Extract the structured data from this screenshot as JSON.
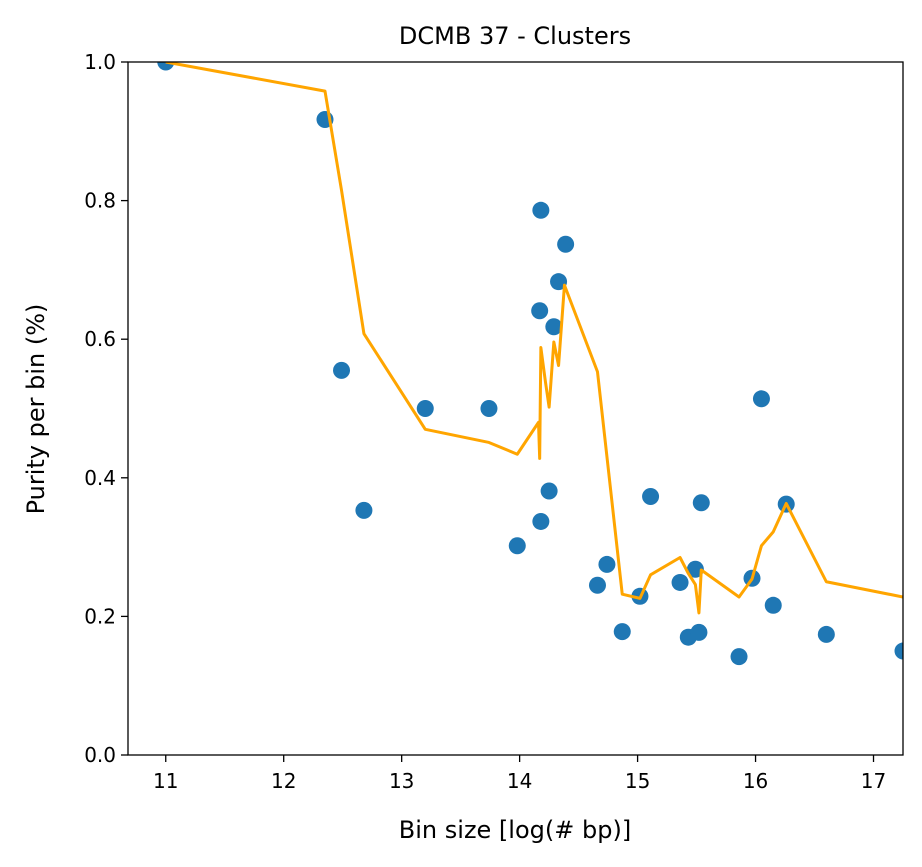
{
  "chart_data": {
    "type": "scatter",
    "title": "DCMB 37 - Clusters",
    "xlabel": "Bin size [log(# bp)]",
    "ylabel": "Purity per bin (%)",
    "xlim": [
      10.68,
      17.25
    ],
    "ylim": [
      0.0,
      1.0
    ],
    "xticks": [
      "11",
      "12",
      "13",
      "14",
      "15",
      "16",
      "17"
    ],
    "yticks": [
      "0.0",
      "0.2",
      "0.4",
      "0.6",
      "0.8",
      "1.0"
    ],
    "grid": false,
    "legend": "none",
    "series": [
      {
        "kind": "scatter",
        "color": "#1f77b4",
        "points": [
          [
            11.0,
            1.0
          ],
          [
            12.35,
            0.917
          ],
          [
            12.49,
            0.555
          ],
          [
            12.68,
            0.353
          ],
          [
            13.2,
            0.5
          ],
          [
            13.74,
            0.5
          ],
          [
            13.98,
            0.302
          ],
          [
            14.18,
            0.786
          ],
          [
            14.17,
            0.641
          ],
          [
            14.18,
            0.337
          ],
          [
            14.25,
            0.381
          ],
          [
            14.29,
            0.618
          ],
          [
            14.33,
            0.683
          ],
          [
            14.39,
            0.737
          ],
          [
            14.66,
            0.245
          ],
          [
            14.74,
            0.275
          ],
          [
            14.87,
            0.178
          ],
          [
            15.02,
            0.229
          ],
          [
            15.11,
            0.373
          ],
          [
            15.36,
            0.249
          ],
          [
            15.43,
            0.17
          ],
          [
            15.49,
            0.268
          ],
          [
            15.52,
            0.177
          ],
          [
            15.54,
            0.364
          ],
          [
            15.86,
            0.142
          ],
          [
            15.97,
            0.255
          ],
          [
            16.05,
            0.514
          ],
          [
            16.15,
            0.216
          ],
          [
            16.26,
            0.362
          ],
          [
            16.6,
            0.174
          ],
          [
            17.25,
            0.15
          ]
        ]
      },
      {
        "kind": "line",
        "color": "#ffa500",
        "points": [
          [
            11.0,
            1.0
          ],
          [
            12.35,
            0.958
          ],
          [
            12.49,
            0.815
          ],
          [
            12.68,
            0.608
          ],
          [
            13.2,
            0.47
          ],
          [
            13.74,
            0.451
          ],
          [
            13.98,
            0.434
          ],
          [
            14.16,
            0.48
          ],
          [
            14.17,
            0.428
          ],
          [
            14.18,
            0.588
          ],
          [
            14.22,
            0.537
          ],
          [
            14.25,
            0.502
          ],
          [
            14.29,
            0.596
          ],
          [
            14.33,
            0.562
          ],
          [
            14.38,
            0.678
          ],
          [
            14.66,
            0.553
          ],
          [
            14.87,
            0.232
          ],
          [
            15.02,
            0.226
          ],
          [
            15.11,
            0.26
          ],
          [
            15.36,
            0.285
          ],
          [
            15.43,
            0.262
          ],
          [
            15.49,
            0.246
          ],
          [
            15.52,
            0.205
          ],
          [
            15.54,
            0.267
          ],
          [
            15.86,
            0.228
          ],
          [
            15.97,
            0.254
          ],
          [
            16.05,
            0.302
          ],
          [
            16.15,
            0.322
          ],
          [
            16.26,
            0.363
          ],
          [
            16.6,
            0.25
          ],
          [
            17.25,
            0.228
          ]
        ]
      }
    ]
  }
}
